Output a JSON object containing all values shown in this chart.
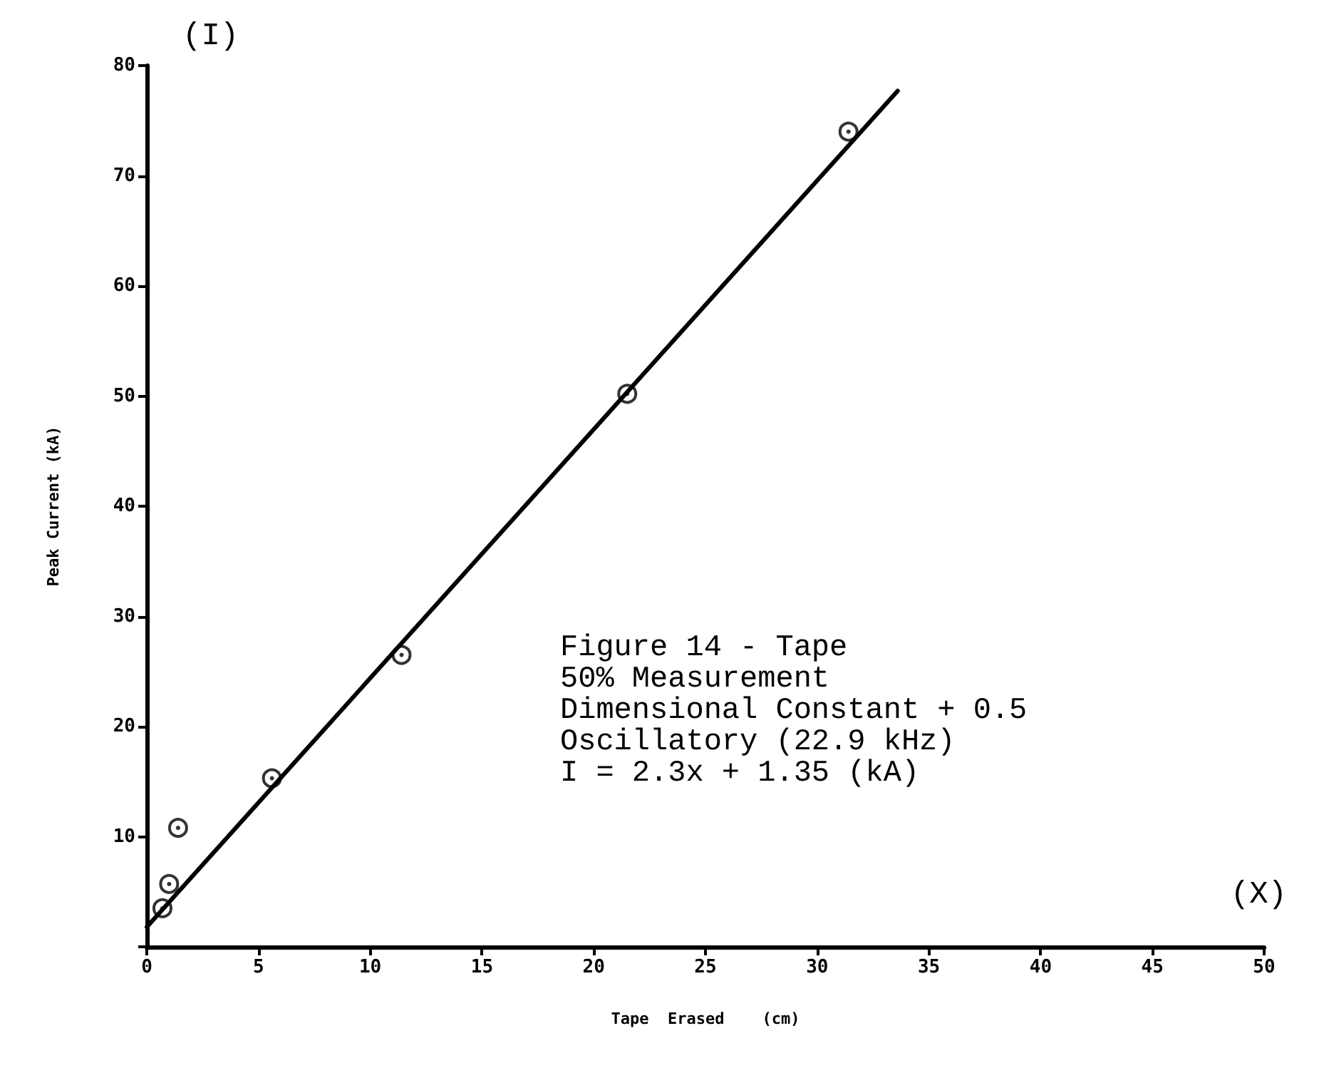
{
  "chart_data": {
    "type": "scatter",
    "xlabel": "Tape  Erased    (cm)",
    "ylabel": "Peak Current (kA)",
    "annotations": [
      "(I)",
      "(X)",
      "Figure 14 - Tape\n50% Measurement\nDimensional Constant + 0.5\nOscillatory (22.9 kHz)\nI = 2.3x + 1.35 (kA)"
    ],
    "series": [
      {
        "color": "#000000",
        "marker": "circle",
        "x": [
          0.7,
          1.0,
          1.4,
          5.6,
          11.4,
          21.5,
          31.4
        ],
        "values": [
          3.5,
          5.7,
          10.8,
          15.3,
          26.5,
          50.2,
          74
        ]
      },
      {
        "type": "line",
        "color": "#000000",
        "marker": "none",
        "line_style": "solid",
        "x": [
          0,
          33.6
        ],
        "values": [
          1.8,
          77.7
        ]
      }
    ],
    "xlim": [
      0,
      50
    ],
    "xticks": [
      0,
      5,
      10,
      15,
      20,
      25,
      30,
      35,
      40,
      45,
      50
    ],
    "ylim": [
      0,
      80
    ],
    "yticks": [
      {
        "value": 0,
        "label": null
      },
      10,
      20,
      30,
      40,
      50,
      60,
      70,
      80
    ],
    "grid": false
  }
}
